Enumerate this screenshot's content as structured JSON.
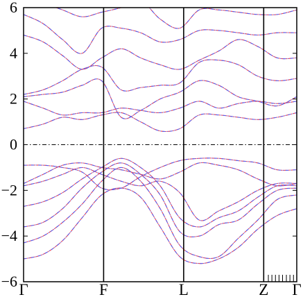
{
  "chart_data": {
    "type": "line",
    "title": "",
    "xlabel": "",
    "ylabel": "",
    "ylim": [
      -6,
      6
    ],
    "yticks": [
      -6,
      -4,
      -2,
      0,
      2,
      4,
      6
    ],
    "xticks": [
      {
        "label": "Γ",
        "pos": 0.0
      },
      {
        "label": "F",
        "pos": 0.293
      },
      {
        "label": "L",
        "pos": 0.586
      },
      {
        "label": "Z",
        "pos": 0.879
      },
      {
        "label": "Γ",
        "pos": 1.0
      }
    ],
    "minor_tick_positions": [
      0.896,
      0.909,
      0.922,
      0.935,
      0.948,
      0.962,
      0.975,
      0.988
    ],
    "fermi_level": 0,
    "series_colors": {
      "dft": "#ff3b3b",
      "wannier": "#5a5ae6"
    },
    "bands": [
      {
        "y": [
          -5.0,
          -4.8,
          -4.2,
          -3.2,
          -2.2,
          -1.9,
          -2.3,
          -3.6,
          -4.9,
          -5.2,
          -5.0,
          -4.5,
          -3.7,
          -3.1,
          -2.8
        ]
      },
      {
        "y": [
          -4.3,
          -4.0,
          -3.4,
          -2.6,
          -1.6,
          -1.0,
          -1.6,
          -2.8,
          -4.4,
          -4.9,
          -4.9,
          -4.1,
          -3.3,
          -2.4,
          -2.2
        ]
      },
      {
        "y": [
          -3.6,
          -3.4,
          -2.8,
          -1.9,
          -1.2,
          -0.8,
          -1.3,
          -2.2,
          -3.8,
          -4.0,
          -3.5,
          -3.3,
          -2.6,
          -2.0,
          -1.9
        ]
      },
      {
        "y": [
          -2.7,
          -2.5,
          -2.1,
          -1.5,
          -1.0,
          -0.6,
          -1.0,
          -1.8,
          -3.2,
          -3.6,
          -3.2,
          -2.9,
          -2.3,
          -1.8,
          -1.8
        ]
      },
      {
        "y": [
          -1.8,
          -1.6,
          -1.3,
          -1.0,
          -1.3,
          -1.6,
          -1.8,
          -1.6,
          -2.1,
          -3.3,
          -2.9,
          -2.5,
          -2.0,
          -1.7,
          -1.7
        ]
      },
      {
        "y": [
          -1.7,
          -1.3,
          -0.9,
          -0.8,
          -1.0,
          -1.1,
          -1.3,
          -1.5,
          -1.2,
          -0.8,
          -0.9,
          -1.1,
          -1.5,
          -1.8,
          -1.7
        ]
      },
      {
        "y": [
          -0.9,
          -0.9,
          -1.0,
          -1.2,
          -1.9,
          -1.9,
          -1.4,
          -1.0,
          -0.7,
          -0.6,
          -0.6,
          -0.7,
          -0.8,
          -1.1,
          -1.1
        ]
      },
      {
        "y": [
          0.7,
          0.9,
          1.2,
          1.1,
          1.3,
          1.4,
          1.0,
          0.6,
          0.7,
          1.3,
          1.3,
          1.2,
          1.1,
          1.2,
          1.4
        ]
      },
      {
        "y": [
          1.9,
          1.6,
          1.3,
          1.4,
          1.4,
          1.6,
          1.5,
          1.4,
          1.6,
          1.9,
          1.6,
          1.8,
          1.9,
          1.8,
          1.9
        ]
      },
      {
        "y": [
          2.1,
          2.2,
          2.3,
          2.6,
          2.8,
          1.2,
          1.5,
          2.0,
          2.3,
          2.8,
          2.6,
          2.1,
          1.9,
          1.7,
          2.1
        ]
      },
      {
        "y": [
          2.2,
          2.4,
          2.8,
          3.3,
          3.4,
          2.4,
          2.5,
          2.6,
          2.7,
          3.6,
          3.7,
          3.5,
          3.0,
          2.8,
          2.9
        ]
      },
      {
        "y": [
          4.8,
          4.5,
          3.9,
          3.3,
          3.8,
          4.2,
          3.8,
          3.5,
          3.3,
          3.7,
          4.1,
          4.6,
          4.3,
          3.8,
          3.8
        ]
      },
      {
        "y": [
          5.7,
          5.3,
          4.6,
          4.0,
          5.1,
          5.1,
          4.9,
          4.5,
          4.6,
          5.0,
          5.0,
          4.9,
          4.8,
          4.9,
          4.9
        ]
      },
      {
        "y": [
          6.5,
          6.2,
          5.9,
          5.6,
          5.8,
          6.0,
          6.3,
          5.5,
          5.1,
          5.9,
          5.9,
          5.8,
          5.7,
          5.7,
          5.9
        ]
      }
    ]
  }
}
